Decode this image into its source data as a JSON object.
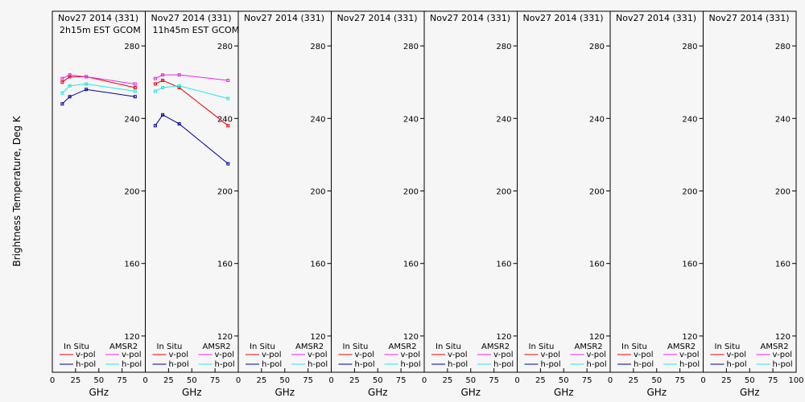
{
  "chart_data": {
    "type": "line",
    "ylabel": "Brightness Temperature, Deg K",
    "xlabel": "GHz",
    "xlim": [
      0,
      100
    ],
    "ylim": [
      100,
      300
    ],
    "xticks": [
      0,
      25,
      50,
      75,
      100
    ],
    "xtick_labels": [
      "0",
      "25",
      "50",
      "75",
      "100"
    ],
    "yticks": [
      120,
      160,
      200,
      240,
      280
    ],
    "ytick_labels": [
      "120",
      "160",
      "200",
      "240",
      "280"
    ],
    "legend": {
      "insitu_title": "In Situ",
      "amsr2_title": "AMSR2",
      "vpol": "v-pol",
      "hpol": "h-pol"
    },
    "colors": {
      "insitu_v": "#ee0000",
      "insitu_h": "#00009e",
      "amsr2_v": "#ee22ee",
      "amsr2_h": "#22e6e6"
    },
    "panels": [
      {
        "title": "Nov27 2014 (331)",
        "subtitle": "2h15m EST GCOM",
        "series": [
          {
            "name": "In Situ v-pol",
            "key": "insitu_v",
            "x": [
              10.7,
              18.7,
              36.5,
              89.0
            ],
            "y": [
              260,
              263,
              263,
              257
            ]
          },
          {
            "name": "In Situ h-pol",
            "key": "insitu_h",
            "x": [
              10.7,
              18.7,
              36.5,
              89.0
            ],
            "y": [
              248,
              252,
              256,
              252
            ]
          },
          {
            "name": "AMSR2 v-pol",
            "key": "amsr2_v",
            "x": [
              10.7,
              18.7,
              36.5,
              89.0
            ],
            "y": [
              262,
              264,
              263,
              259
            ]
          },
          {
            "name": "AMSR2 h-pol",
            "key": "amsr2_h",
            "x": [
              10.7,
              18.7,
              36.5,
              89.0
            ],
            "y": [
              254,
              258,
              259,
              255
            ]
          }
        ]
      },
      {
        "title": "Nov27 2014 (331)",
        "subtitle": "11h45m EST GCOM",
        "series": [
          {
            "name": "In Situ v-pol",
            "key": "insitu_v",
            "x": [
              10.7,
              18.7,
              36.5,
              89.0
            ],
            "y": [
              259,
              261,
              257,
              236
            ]
          },
          {
            "name": "In Situ h-pol",
            "key": "insitu_h",
            "x": [
              10.7,
              18.7,
              36.5,
              89.0
            ],
            "y": [
              236,
              242,
              237,
              215
            ]
          },
          {
            "name": "AMSR2 v-pol",
            "key": "amsr2_v",
            "x": [
              10.7,
              18.7,
              36.5,
              89.0
            ],
            "y": [
              262,
              264,
              264,
              261
            ]
          },
          {
            "name": "AMSR2 h-pol",
            "key": "amsr2_h",
            "x": [
              10.7,
              18.7,
              36.5,
              89.0
            ],
            "y": [
              255,
              257,
              258,
              251
            ]
          }
        ]
      },
      {
        "title": "Nov27 2014 (331)",
        "subtitle": "",
        "series": []
      },
      {
        "title": "Nov27 2014 (331)",
        "subtitle": "",
        "series": []
      },
      {
        "title": "Nov27 2014 (331)",
        "subtitle": "",
        "series": []
      },
      {
        "title": "Nov27 2014 (331)",
        "subtitle": "",
        "series": []
      },
      {
        "title": "Nov27 2014 (331)",
        "subtitle": "",
        "series": []
      },
      {
        "title": "Nov27 2014 (331)",
        "subtitle": "",
        "series": []
      }
    ]
  }
}
